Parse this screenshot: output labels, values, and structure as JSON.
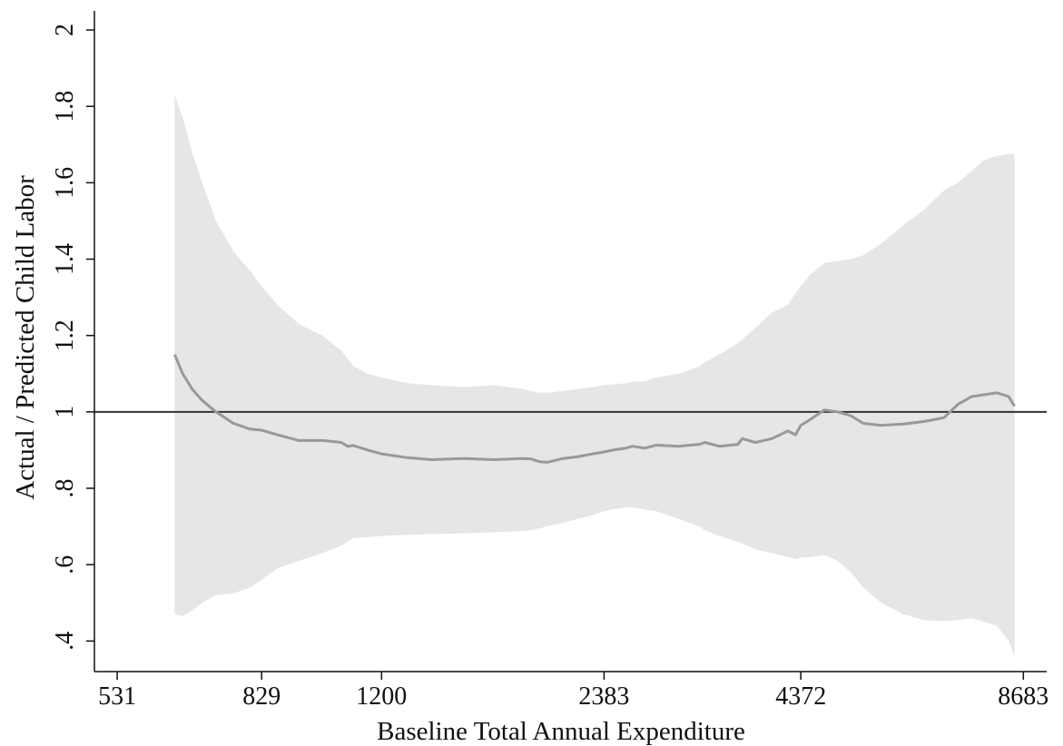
{
  "chart_data": {
    "type": "line",
    "title": "",
    "xlabel": "Baseline Total Annual Expenditure",
    "ylabel": "Actual / Predicted Child Labor",
    "x_scale": "log",
    "xlim": [
      495,
      9330
    ],
    "ylim": [
      0.32,
      2.05
    ],
    "x_ticks": [
      {
        "value": 531,
        "label": "531"
      },
      {
        "value": 829,
        "label": "829"
      },
      {
        "value": 1200,
        "label": "1200"
      },
      {
        "value": 2383,
        "label": "2383"
      },
      {
        "value": 4372,
        "label": "4372"
      },
      {
        "value": 8683,
        "label": "8683"
      }
    ],
    "y_ticks": [
      {
        "value": 0.4,
        "label": ".4"
      },
      {
        "value": 0.6,
        "label": ".6"
      },
      {
        "value": 0.8,
        "label": ".8"
      },
      {
        "value": 1.0,
        "label": "1"
      },
      {
        "value": 1.2,
        "label": "1.2"
      },
      {
        "value": 1.4,
        "label": "1.4"
      },
      {
        "value": 1.6,
        "label": "1.6"
      },
      {
        "value": 1.8,
        "label": "1.8"
      },
      {
        "value": 2.0,
        "label": "2"
      }
    ],
    "reference_line": {
      "y": 1.0,
      "color": "#333333"
    },
    "grid": false,
    "legend": "none",
    "colors": {
      "band": "#e6e6e6",
      "line": "#999999",
      "axis": "#111111"
    },
    "series": [
      {
        "x": [
          634,
          650,
          669,
          690,
          720,
          760,
          800,
          829,
          870,
          930,
          1000,
          1060,
          1080,
          1100,
          1150,
          1200,
          1300,
          1400,
          1550,
          1700,
          1850,
          1900,
          1950,
          2000,
          2100,
          2200,
          2300,
          2383,
          2450,
          2550,
          2600,
          2700,
          2800,
          3000,
          3200,
          3250,
          3400,
          3600,
          3650,
          3800,
          4000,
          4200,
          4300,
          4372,
          4500,
          4700,
          4900,
          5100,
          5300,
          5600,
          6000,
          6400,
          6800,
          7100,
          7400,
          7700,
          8000,
          8300,
          8450
        ],
        "y": [
          1.15,
          1.1,
          1.06,
          1.03,
          1.0,
          0.97,
          0.955,
          0.952,
          0.94,
          0.925,
          0.925,
          0.92,
          0.91,
          0.912,
          0.9,
          0.89,
          0.88,
          0.875,
          0.878,
          0.875,
          0.878,
          0.877,
          0.87,
          0.868,
          0.878,
          0.883,
          0.89,
          0.895,
          0.9,
          0.905,
          0.91,
          0.905,
          0.913,
          0.91,
          0.915,
          0.92,
          0.91,
          0.915,
          0.93,
          0.92,
          0.93,
          0.95,
          0.94,
          0.965,
          0.98,
          1.005,
          1.0,
          0.99,
          0.97,
          0.965,
          0.968,
          0.975,
          0.985,
          1.02,
          1.04,
          1.045,
          1.05,
          1.04,
          1.015
        ],
        "lower": [
          0.47,
          0.465,
          0.48,
          0.5,
          0.52,
          0.525,
          0.54,
          0.56,
          0.59,
          0.61,
          0.63,
          0.65,
          0.66,
          0.67,
          0.672,
          0.675,
          0.678,
          0.68,
          0.682,
          0.685,
          0.688,
          0.69,
          0.695,
          0.7,
          0.71,
          0.72,
          0.73,
          0.74,
          0.745,
          0.75,
          0.75,
          0.745,
          0.74,
          0.72,
          0.7,
          0.69,
          0.675,
          0.66,
          0.655,
          0.64,
          0.63,
          0.62,
          0.615,
          0.618,
          0.62,
          0.625,
          0.61,
          0.58,
          0.54,
          0.5,
          0.47,
          0.455,
          0.452,
          0.455,
          0.46,
          0.45,
          0.44,
          0.4,
          0.36
        ],
        "upper": [
          1.83,
          1.77,
          1.68,
          1.6,
          1.5,
          1.42,
          1.37,
          1.33,
          1.28,
          1.23,
          1.2,
          1.16,
          1.14,
          1.12,
          1.1,
          1.09,
          1.075,
          1.07,
          1.065,
          1.07,
          1.06,
          1.055,
          1.05,
          1.05,
          1.055,
          1.06,
          1.065,
          1.07,
          1.072,
          1.075,
          1.08,
          1.08,
          1.09,
          1.1,
          1.12,
          1.13,
          1.15,
          1.18,
          1.19,
          1.22,
          1.26,
          1.28,
          1.31,
          1.33,
          1.36,
          1.39,
          1.395,
          1.4,
          1.41,
          1.44,
          1.49,
          1.53,
          1.58,
          1.6,
          1.63,
          1.66,
          1.67,
          1.675,
          1.675
        ]
      }
    ]
  }
}
